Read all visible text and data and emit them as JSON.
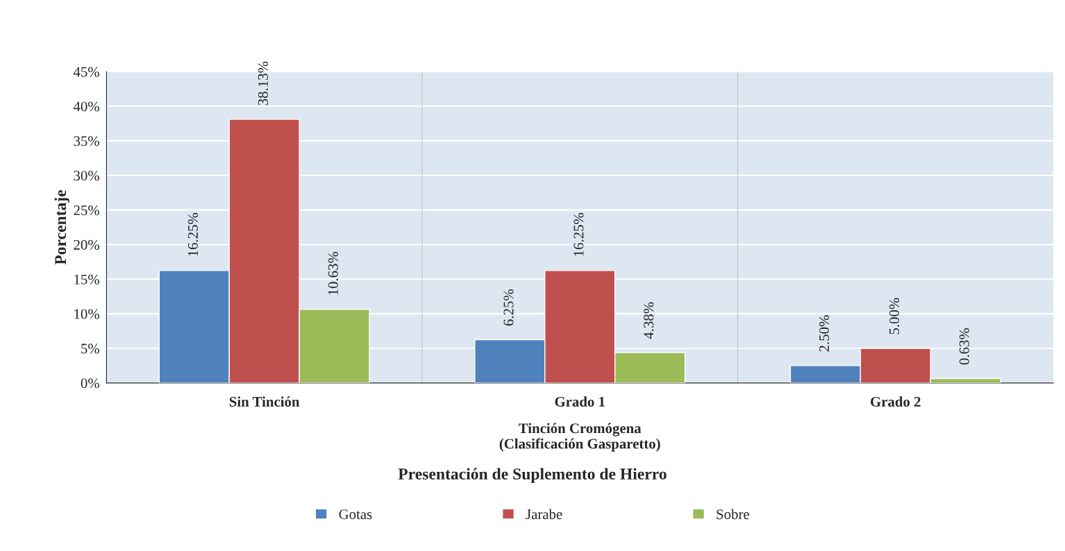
{
  "chart_data": {
    "type": "bar",
    "categories": [
      "Sin Tinción",
      "Grado 1",
      "Grado 2"
    ],
    "series": [
      {
        "name": "Gotas",
        "color": "#4f81bd",
        "values": [
          16.25,
          6.25,
          2.5
        ],
        "value_labels": [
          "16.25%",
          "6.25%",
          "2.50%"
        ]
      },
      {
        "name": "Jarabe",
        "color": "#c0504d",
        "values": [
          38.13,
          16.25,
          5.0
        ],
        "value_labels": [
          "38.13%",
          "16.25%",
          "5.00%"
        ]
      },
      {
        "name": "Sobre",
        "color": "#9bbb59",
        "values": [
          10.63,
          4.38,
          0.63
        ],
        "value_labels": [
          "10.63%",
          "4.38%",
          "0.63%"
        ]
      }
    ],
    "ylabel": "Porcentaje",
    "xlabel": "Tinción Cromógena\n(Clasificación Gasparetto)",
    "annotations": [
      "Presentación de Suplemento de Hierro"
    ],
    "ylim": [
      0,
      45
    ],
    "yticks": [
      {
        "value": 0,
        "label": "0%"
      },
      {
        "value": 5,
        "label": "5%"
      },
      {
        "value": 10,
        "label": "10%"
      },
      {
        "value": 15,
        "label": "15%"
      },
      {
        "value": 20,
        "label": "20%"
      },
      {
        "value": 25,
        "label": "25%"
      },
      {
        "value": 30,
        "label": "30%"
      },
      {
        "value": 35,
        "label": "35%"
      },
      {
        "value": 40,
        "label": "40%"
      },
      {
        "value": 45,
        "label": "45%"
      }
    ],
    "grid": "y",
    "legend": "bottom"
  }
}
